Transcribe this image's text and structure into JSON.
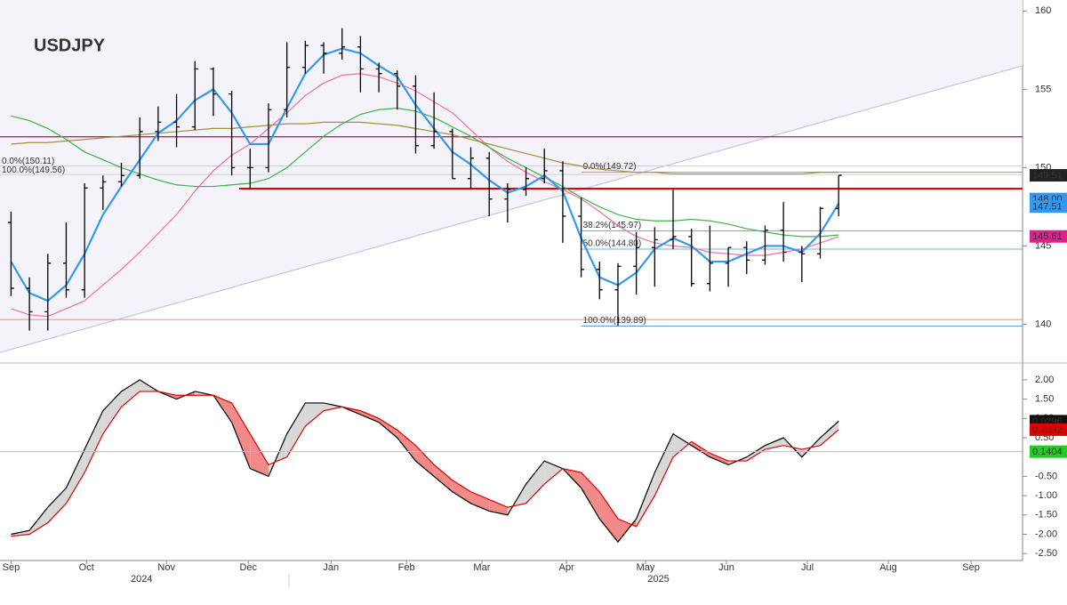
{
  "chart_data": {
    "type": "ohlc",
    "title": "USDJPY",
    "color": "#000000",
    "categories": [
      null,
      null,
      null,
      null,
      null,
      null,
      null,
      null,
      null,
      null,
      null,
      null,
      null,
      null,
      null,
      null,
      null,
      null,
      null,
      null,
      null,
      null,
      null,
      null,
      null,
      null,
      null,
      null,
      null,
      null,
      null,
      null,
      null,
      null,
      null,
      null,
      null,
      null,
      null,
      null,
      null,
      null,
      null,
      null,
      null,
      null
    ],
    "open": [
      146.5,
      142.3,
      140.8,
      143.9,
      142.2,
      148.7,
      149.1,
      149.5,
      152.3,
      152.9,
      152.6,
      156.3,
      154.7,
      150.0,
      150.0,
      153.7,
      156.4,
      157.8,
      157.3,
      157.7,
      156.3,
      156.0,
      155.2,
      151.4,
      152.3,
      149.3,
      150.6,
      148.0,
      148.6,
      149.3,
      149.8,
      146.9,
      143.5,
      142.2,
      143.7,
      144.9,
      145.4,
      145.6,
      142.6,
      143.9,
      144.9,
      144.1,
      146.0,
      144.6,
      144.5,
      147.4
    ],
    "high": [
      147.2,
      143.0,
      144.5,
      146.5,
      149.0,
      149.5,
      150.3,
      153.2,
      153.9,
      154.7,
      156.8,
      156.4,
      154.9,
      151.2,
      154.1,
      158.0,
      158.1,
      158.0,
      158.9,
      158.4,
      156.7,
      156.2,
      155.9,
      154.8,
      152.5,
      151.3,
      151.0,
      149.0,
      150.0,
      151.2,
      150.4,
      148.1,
      144.0,
      143.9,
      145.9,
      146.2,
      148.6,
      146.1,
      146.3,
      144.9,
      145.3,
      146.3,
      147.8,
      145.0,
      147.5,
      149.5
    ],
    "low": [
      141.8,
      139.6,
      139.6,
      141.7,
      141.7,
      147.3,
      148.8,
      149.3,
      151.7,
      151.3,
      152.4,
      153.3,
      149.5,
      148.6,
      149.7,
      153.2,
      156.0,
      156.0,
      156.9,
      154.8,
      154.8,
      153.7,
      150.9,
      151.2,
      149.3,
      148.6,
      146.9,
      146.5,
      148.2,
      149.0,
      145.2,
      143.0,
      141.6,
      139.9,
      141.9,
      142.4,
      144.8,
      142.4,
      142.1,
      142.4,
      143.2,
      143.8,
      144.0,
      142.7,
      144.2,
      146.9
    ],
    "close": [
      142.3,
      140.8,
      143.9,
      142.2,
      148.7,
      149.1,
      149.5,
      152.3,
      152.9,
      152.6,
      156.3,
      154.7,
      150.0,
      150.0,
      153.7,
      156.4,
      157.8,
      157.3,
      157.7,
      156.3,
      156.0,
      155.2,
      151.4,
      152.3,
      149.3,
      150.6,
      148.0,
      148.6,
      149.3,
      149.8,
      146.9,
      143.5,
      142.2,
      143.7,
      144.9,
      145.4,
      145.6,
      142.6,
      143.9,
      144.9,
      144.1,
      146.0,
      144.6,
      144.5,
      147.4,
      149.51
    ],
    "ma_lines": [
      {
        "color": "#f070a0",
        "values": [
          141,
          140.6,
          140.5,
          141,
          141.5,
          142.5,
          143.5,
          144.6,
          145.8,
          147,
          148.5,
          149.8,
          150.8,
          151.5,
          152.5,
          153.5,
          154.6,
          155.4,
          155.9,
          156,
          155.8,
          155.4,
          154.9,
          154.2,
          153.5,
          152.4,
          151.3,
          150.4,
          149.7,
          149.1,
          148.6,
          148.0,
          147.2,
          146.3,
          145.6,
          145.2,
          145.0,
          144.9,
          144.6,
          144.5,
          144.4,
          144.4,
          144.6,
          144.8,
          145.2,
          145.6
        ]
      },
      {
        "color": "#3cb44b",
        "values": [
          153.3,
          153,
          152.5,
          151.8,
          151,
          150.5,
          150,
          149.6,
          149.2,
          148.9,
          148.8,
          148.8,
          148.9,
          149,
          149.3,
          150,
          151,
          152,
          152.8,
          153.4,
          153.7,
          153.8,
          153.6,
          153.2,
          152.6,
          152,
          151.3,
          150.6,
          150,
          149.4,
          148.8,
          148.1,
          147.5,
          147,
          146.7,
          146.6,
          146.6,
          146.7,
          146.6,
          146.4,
          146.1,
          145.9,
          145.7,
          145.6,
          145.6,
          145.7
        ]
      },
      {
        "color": "#a09040",
        "values": [
          151.5,
          151.6,
          151.6,
          151.7,
          151.8,
          151.9,
          152.0,
          152.1,
          152.2,
          152.3,
          152.4,
          152.5,
          152.5,
          152.6,
          152.7,
          152.8,
          152.8,
          152.9,
          152.9,
          152.9,
          152.8,
          152.7,
          152.5,
          152.3,
          152.1,
          151.8,
          151.5,
          151.2,
          150.9,
          150.6,
          150.3,
          150.1,
          149.9,
          149.8,
          149.7,
          149.7,
          149.6,
          149.6,
          149.6,
          149.6,
          149.6,
          149.6,
          149.6,
          149.6,
          149.7,
          149.7
        ]
      },
      {
        "color": "#3399ee",
        "values": [
          144,
          142,
          141.5,
          142.5,
          144.5,
          147,
          148.8,
          150.5,
          152.2,
          153,
          154.3,
          155,
          153.5,
          151.5,
          151.5,
          153.8,
          156,
          157.2,
          157.6,
          157.3,
          156.5,
          155.8,
          154,
          152.5,
          151,
          150.2,
          149.2,
          148.4,
          148.8,
          149.5,
          148.5,
          145.5,
          143,
          142.5,
          143.3,
          144.8,
          145.5,
          145,
          144,
          144,
          144.5,
          145,
          145,
          144.6,
          145.8,
          147.7
        ]
      }
    ],
    "xlim": [
      -0.6,
      55
    ],
    "ylim": [
      137.7,
      160.7
    ],
    "yticks": [
      140,
      145,
      150,
      155,
      160
    ],
    "xticks": [
      {
        "value": 0,
        "label": "Sep"
      },
      {
        "value": 4.1,
        "label": "Oct"
      },
      {
        "value": 8.45,
        "label": "Nov"
      },
      {
        "value": 12.9,
        "label": "Dec"
      },
      {
        "value": 17.4,
        "label": "Jan"
      },
      {
        "value": 21.5,
        "label": "Feb"
      },
      {
        "value": 25.6,
        "label": "Mar"
      },
      {
        "value": 30.2,
        "label": "Apr"
      },
      {
        "value": 34.5,
        "label": "May"
      },
      {
        "value": 38.9,
        "label": "Jun"
      },
      {
        "value": 43.3,
        "label": "Jul"
      },
      {
        "value": 47.7,
        "label": "Aug"
      },
      {
        "value": 52.2,
        "label": "Sep"
      }
    ],
    "year_ticks": [
      {
        "value": 7.1,
        "label": "2024"
      },
      {
        "value": 35.2,
        "label": "2025"
      }
    ],
    "trend_line": {
      "color": "#c8c4e0",
      "values": [
        138.2,
        156.5
      ]
    },
    "levels": [
      {
        "value": 148.66,
        "color": "#e00000"
      },
      {
        "value": 151.97,
        "color": "#a0185a"
      },
      {
        "value": 140.3,
        "color": "#f0a0a0"
      }
    ],
    "fib": [
      {
        "value": 149.72,
        "label": "0.0%(149.72)"
      },
      {
        "value": 145.97,
        "label": "38.2%(145.97)"
      },
      {
        "value": 144.8,
        "label": "50.0%(144.80)"
      },
      {
        "value": 139.89,
        "label": "100.0%(139.89)"
      }
    ],
    "fib_left": [
      {
        "value": 150.11,
        "label": "0.0%(150.11)"
      },
      {
        "value": 149.56,
        "label": "100.0%(149.56)"
      }
    ],
    "price_tags": [
      {
        "value": 149.51,
        "color": "#222222"
      },
      {
        "value": 148,
        "label": "148.00",
        "color": "#3399ee"
      },
      {
        "value": 147.51,
        "color": "#3399ee"
      },
      {
        "value": 145.61,
        "color": "#e0208a"
      }
    ],
    "oscillator": {
      "type": "line",
      "series": [
        {
          "color": "#000000",
          "values": [
            -2.0,
            -1.9,
            -1.3,
            -0.8,
            0.2,
            1.2,
            1.7,
            2.0,
            1.7,
            1.5,
            1.7,
            1.6,
            0.9,
            -0.3,
            -0.5,
            0.6,
            1.4,
            1.4,
            1.3,
            1.1,
            0.9,
            0.5,
            -0.1,
            -0.5,
            -0.9,
            -1.2,
            -1.4,
            -1.5,
            -0.7,
            -0.1,
            -0.3,
            -0.8,
            -1.6,
            -2.2,
            -1.6,
            -0.4,
            0.6,
            0.3,
            0.0,
            -0.2,
            0.0,
            0.3,
            0.5,
            0.0,
            0.5,
            0.9296
          ]
        },
        {
          "color": "#e00000",
          "values": [
            -2.05,
            -2.0,
            -1.7,
            -1.2,
            -0.4,
            0.6,
            1.3,
            1.7,
            1.7,
            1.6,
            1.6,
            1.6,
            1.4,
            0.6,
            -0.2,
            0.0,
            0.8,
            1.2,
            1.3,
            1.2,
            1.0,
            0.7,
            0.3,
            -0.2,
            -0.6,
            -0.9,
            -1.1,
            -1.3,
            -1.2,
            -0.7,
            -0.3,
            -0.4,
            -0.9,
            -1.6,
            -1.8,
            -1.0,
            0.0,
            0.4,
            0.1,
            -0.1,
            -0.1,
            0.2,
            0.3,
            0.2,
            0.3,
            0.7092
          ]
        }
      ],
      "ylim": [
        -2.68,
        2.39
      ],
      "yticks": [
        {
          "value": 2,
          "label": "2.00"
        },
        {
          "value": 1.5,
          "label": "1.50"
        },
        {
          "value": 1,
          "label": "1.00"
        },
        {
          "value": 0.5,
          "label": "0.50"
        },
        {
          "value": -0.5,
          "label": "-0.50"
        },
        {
          "value": -1,
          "label": "-1.00"
        },
        {
          "value": -1.5,
          "label": "-1.50"
        },
        {
          "value": -2,
          "label": "-2.00"
        },
        {
          "value": -2.5,
          "label": "-2.50"
        }
      ],
      "tags": [
        {
          "value": 0.9296,
          "color": "#111111"
        },
        {
          "value": 0.7092,
          "color": "#e00000"
        },
        {
          "value": 0.1404,
          "color": "#22cc22",
          "line": true
        }
      ]
    }
  }
}
